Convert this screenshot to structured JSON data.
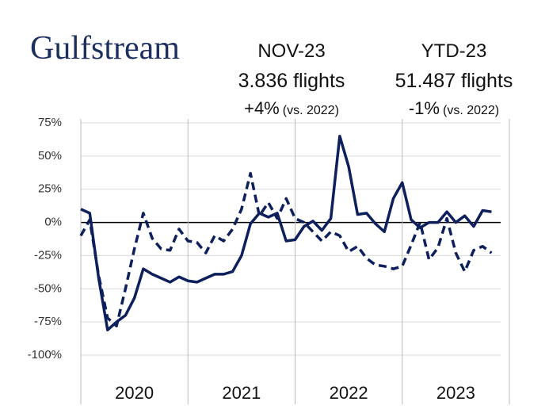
{
  "header": {
    "logo": "Gulfstream",
    "month": {
      "period": "NOV-23",
      "flights": "3.836 flights",
      "change": "+4%",
      "note": "(vs. 2022)"
    },
    "ytd": {
      "period": "YTD-23",
      "flights": "51.487 flights",
      "change": "-1%",
      "note": "(vs. 2022)"
    }
  },
  "chart_data": {
    "type": "line",
    "year_labels": [
      "2020",
      "2021",
      "2022",
      "2023"
    ],
    "series": [
      {
        "color": "#0d1f5c",
        "dashed": false,
        "values": [
          10,
          7,
          -42,
          -81,
          -75,
          -70,
          -57,
          -35,
          -39,
          -42,
          -45,
          -41,
          -44,
          -45,
          -42,
          -39,
          -39,
          -37,
          -25,
          -1,
          7,
          4,
          7,
          -14,
          -13,
          -3,
          1,
          -6,
          3,
          65,
          42,
          6,
          7,
          -1,
          -7,
          18,
          30,
          2,
          -4,
          0,
          0,
          8,
          0,
          5,
          -3,
          9,
          8
        ]
      },
      {
        "color": "#0d1f5c",
        "dashed": true,
        "values": [
          -10,
          2,
          -40,
          -72,
          -78,
          -50,
          -20,
          7,
          -12,
          -20,
          -21,
          -5,
          -14,
          -15,
          -23,
          -10,
          -14,
          -5,
          10,
          37,
          5,
          15,
          3,
          18,
          3,
          0,
          -7,
          -14,
          -7,
          -10,
          -22,
          -18,
          -27,
          -32,
          -33,
          -35,
          -33,
          -17,
          0,
          -28,
          -19,
          3,
          -23,
          -37,
          -21,
          -18,
          -23
        ]
      }
    ],
    "ylim": [
      -100,
      75
    ],
    "yticks": [
      {
        "value": -100,
        "label": "-100%"
      },
      {
        "value": -75,
        "label": "-75%"
      },
      {
        "value": -50,
        "label": "-50%"
      },
      {
        "value": -25,
        "label": "-25%"
      },
      {
        "value": 0,
        "label": "0%"
      },
      {
        "value": 25,
        "label": "25%"
      },
      {
        "value": 50,
        "label": "50%"
      },
      {
        "value": 75,
        "label": "75%"
      }
    ],
    "grid": true
  }
}
